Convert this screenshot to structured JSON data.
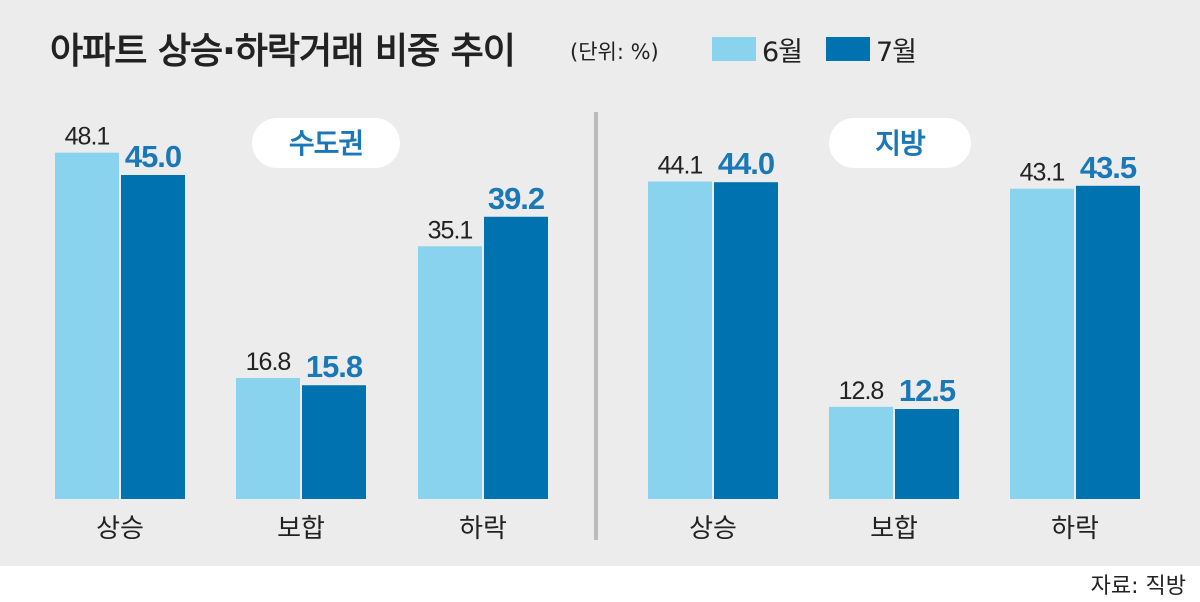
{
  "title": "아파트 상승·하락거래 비중 추이",
  "unit": "(단위: %)",
  "source": "자료: 직방",
  "colors": {
    "june": "#8ad3ee",
    "july": "#0072b0",
    "label_july": "#1a78b6",
    "text": "#222222",
    "panel": "#ececec",
    "divider": "#bbbbbb"
  },
  "chart_data": [
    {
      "type": "bar",
      "region": "수도권",
      "categories": [
        "상승",
        "보합",
        "하락"
      ],
      "series": [
        {
          "name": "6월",
          "values": [
            48.1,
            16.8,
            35.1
          ]
        },
        {
          "name": "7월",
          "values": [
            45.0,
            15.8,
            39.2
          ]
        }
      ],
      "ylim": [
        0,
        50
      ],
      "legend": "top",
      "grid": false
    },
    {
      "type": "bar",
      "region": "지방",
      "categories": [
        "상승",
        "보합",
        "하락"
      ],
      "series": [
        {
          "name": "6월",
          "values": [
            44.1,
            12.8,
            43.1
          ]
        },
        {
          "name": "7월",
          "values": [
            44.0,
            12.5,
            43.5
          ]
        }
      ],
      "ylim": [
        0,
        50
      ],
      "legend": "top",
      "grid": false
    }
  ]
}
